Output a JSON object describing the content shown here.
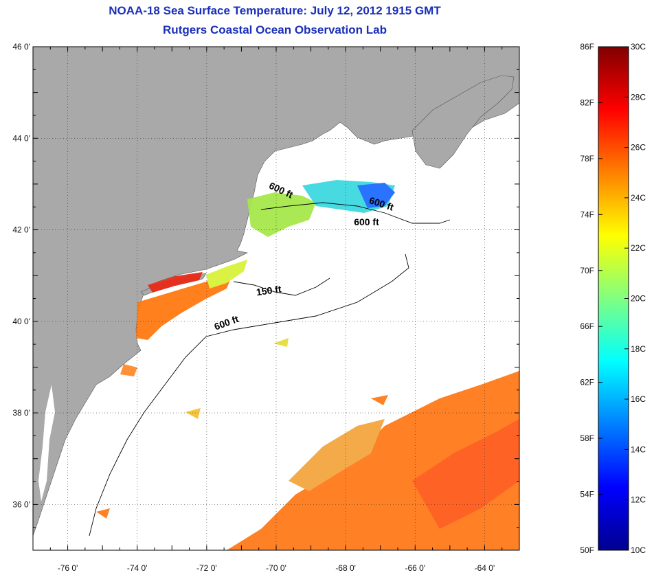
{
  "title_line_1": "NOAA-18 Sea Surface Temperature:  July 12, 2012 1915 GMT",
  "title_line_2": "Rutgers Coastal Ocean Observation Lab",
  "map": {
    "lat_labels": [
      "46 0'",
      "44 0'",
      "42 0'",
      "40 0'",
      "38 0'",
      "36 0'"
    ],
    "lat_values": [
      46,
      44,
      42,
      40,
      38,
      36
    ],
    "lon_labels": [
      "-76 0'",
      "-74 0'",
      "-72 0'",
      "-70 0'",
      "-68 0'",
      "-66 0'",
      "-64 0'"
    ],
    "lon_values": [
      -76,
      -74,
      -72,
      -70,
      -68,
      -66,
      -64
    ],
    "lat_range": [
      35,
      46
    ],
    "lon_range": [
      -77,
      -63
    ],
    "grid": "dotted",
    "land_color": "#a9a9a9",
    "no_data_color": "#ffffff",
    "contour_labels": [
      {
        "text": "600 ft",
        "lon": -69.9,
        "lat": 42.8
      },
      {
        "text": "600 ft",
        "lon": -67.0,
        "lat": 42.5
      },
      {
        "text": "600 ft",
        "lon": -67.4,
        "lat": 42.1
      },
      {
        "text": "150 ft",
        "lon": -70.2,
        "lat": 40.6
      },
      {
        "text": "600 ft",
        "lon": -71.4,
        "lat": 39.9
      }
    ]
  },
  "colorbar": {
    "fahrenheit_labels": [
      "86F",
      "82F",
      "78F",
      "74F",
      "70F",
      "66F",
      "62F",
      "58F",
      "54F",
      "50F"
    ],
    "celsius_labels": [
      "30C",
      "28C",
      "26C",
      "24C",
      "22C",
      "20C",
      "18C",
      "16C",
      "14C",
      "12C",
      "10C"
    ],
    "celsius_range": [
      10,
      30
    ],
    "colors": [
      "#00008f",
      "#0000ff",
      "#0080ff",
      "#00ffff",
      "#80ff80",
      "#ffff00",
      "#ff8000",
      "#ff0000",
      "#800000"
    ]
  }
}
